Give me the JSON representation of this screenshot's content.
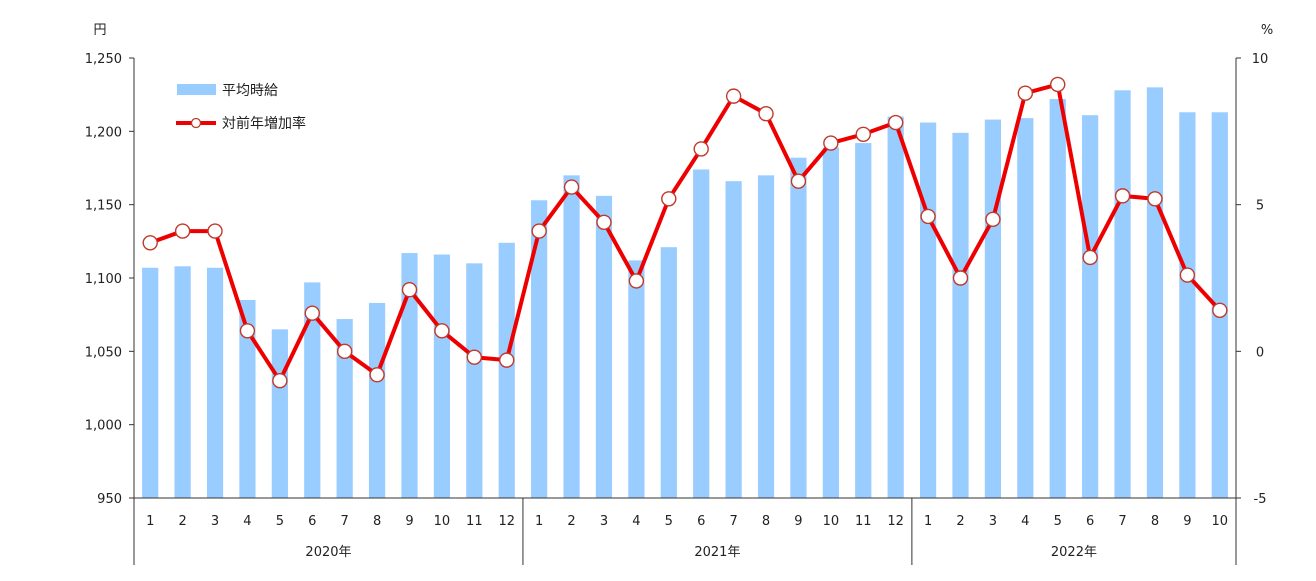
{
  "chart_data": {
    "type": "bar+line",
    "left_axis": {
      "unit": "円",
      "ylim": [
        950,
        1250
      ],
      "ticks": [
        "950",
        "1,000",
        "1,050",
        "1,100",
        "1,150",
        "1,200",
        "1,250"
      ],
      "tick_values": [
        950,
        1000,
        1050,
        1100,
        1150,
        1200,
        1250
      ]
    },
    "right_axis": {
      "unit": "%",
      "ylim": [
        -5,
        10
      ],
      "ticks": [
        "-5",
        "0",
        "5",
        "10"
      ],
      "tick_values": [
        -5,
        0,
        5,
        10
      ]
    },
    "months": [
      "1",
      "2",
      "3",
      "4",
      "5",
      "6",
      "7",
      "8",
      "9",
      "10",
      "11",
      "12",
      "1",
      "2",
      "3",
      "4",
      "5",
      "6",
      "7",
      "8",
      "9",
      "10",
      "11",
      "12",
      "1",
      "2",
      "3",
      "4",
      "5",
      "6",
      "7",
      "8",
      "9",
      "10"
    ],
    "year_groups": [
      {
        "label": "2020年",
        "count": 12
      },
      {
        "label": "2021年",
        "count": 12
      },
      {
        "label": "2022年",
        "count": 10
      }
    ],
    "series": [
      {
        "name": "平均時給",
        "type": "bar",
        "axis": "left",
        "color": "#99ccff",
        "values": [
          1107,
          1108,
          1107,
          1085,
          1065,
          1097,
          1072,
          1083,
          1117,
          1116,
          1110,
          1124,
          1153,
          1170,
          1156,
          1112,
          1121,
          1174,
          1166,
          1170,
          1182,
          1189,
          1192,
          1210,
          1206,
          1199,
          1208,
          1209,
          1222,
          1211,
          1228,
          1230,
          1213,
          1213
        ]
      },
      {
        "name": "対前年増加率",
        "type": "line",
        "axis": "right",
        "color": "#ee0000",
        "values": [
          3.7,
          4.1,
          4.1,
          0.7,
          -1.0,
          1.3,
          0.0,
          -0.8,
          2.1,
          0.7,
          -0.2,
          -0.3,
          4.1,
          5.6,
          4.4,
          2.4,
          5.2,
          6.9,
          8.7,
          8.1,
          5.8,
          7.1,
          7.4,
          7.8,
          4.6,
          2.5,
          4.5,
          8.8,
          9.1,
          3.2,
          5.3,
          5.2,
          2.6,
          1.4
        ]
      }
    ],
    "legend_position": "top-left",
    "grid": false
  }
}
